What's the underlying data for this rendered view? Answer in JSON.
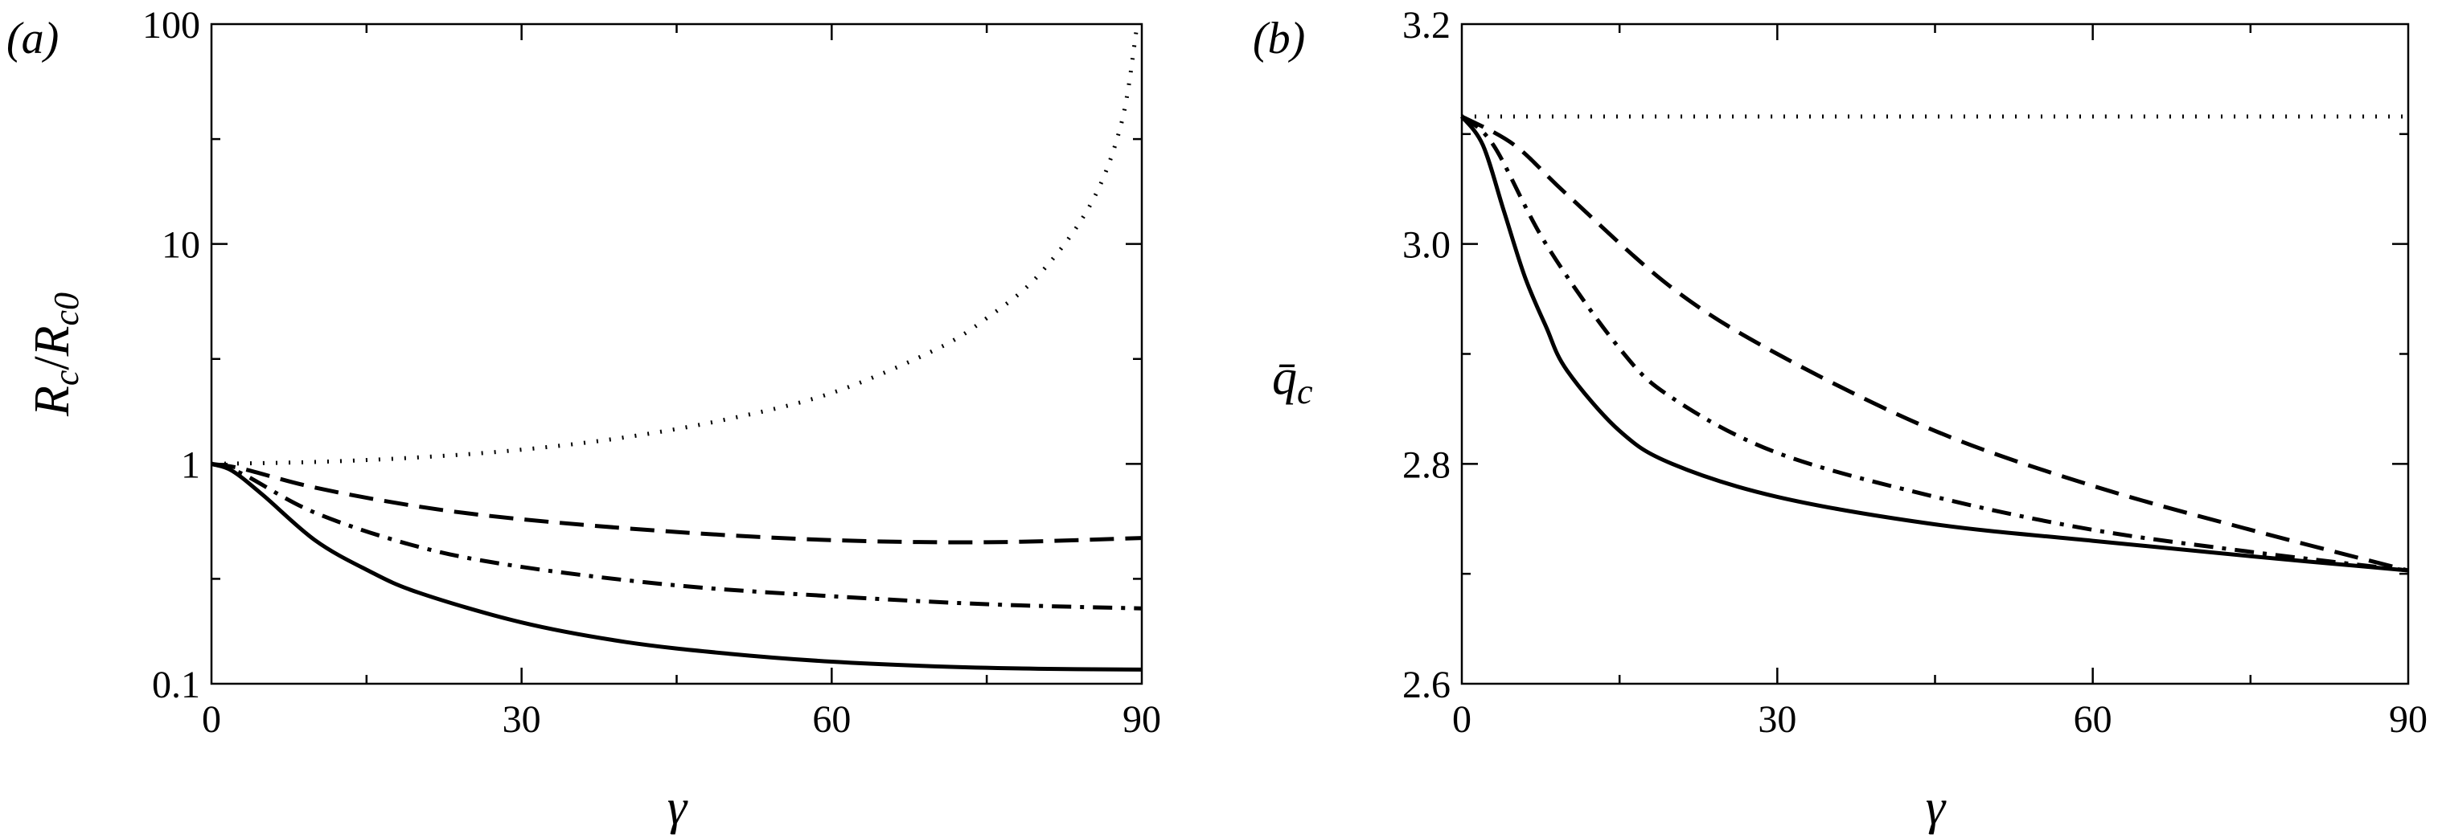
{
  "chart_data": [
    {
      "panel_label": "(a)",
      "type": "line",
      "ylabel": "R_c/R_c0",
      "ylabel_parts": {
        "main": "R",
        "sub": "c",
        "slash": "/",
        "main2": "R",
        "sub2": "c0"
      },
      "xlabel": "γ",
      "xlim": [
        0,
        90
      ],
      "ylim": [
        0.1,
        100
      ],
      "yscale": "log",
      "xticks": [
        0,
        30,
        60,
        90
      ],
      "xtick_labels": [
        "0",
        "30",
        "60",
        "90"
      ],
      "yticks": [
        0.1,
        1,
        10,
        100
      ],
      "ytick_labels": [
        "0.1",
        "1",
        "10",
        "100"
      ],
      "grid": false,
      "series": [
        {
          "line_style": "dotted",
          "x": [
            0,
            10,
            20,
            30,
            40,
            50,
            60,
            70,
            75,
            80,
            85,
            88,
            89.5
          ],
          "y": [
            1.0,
            1.02,
            1.07,
            1.16,
            1.32,
            1.6,
            2.1,
            3.3,
            4.6,
            7.2,
            15,
            35,
            95
          ]
        },
        {
          "line_style": "dashed",
          "x": [
            0,
            3,
            10,
            20,
            30,
            45,
            60,
            75,
            90
          ],
          "y": [
            1.0,
            0.95,
            0.78,
            0.64,
            0.56,
            0.49,
            0.45,
            0.44,
            0.46
          ]
        },
        {
          "line_style": "dash-dot",
          "x": [
            0,
            3,
            10,
            20,
            30,
            45,
            60,
            75,
            90
          ],
          "y": [
            1.0,
            0.9,
            0.6,
            0.42,
            0.34,
            0.28,
            0.25,
            0.23,
            0.22
          ]
        },
        {
          "line_style": "solid",
          "x": [
            0,
            2,
            5,
            10,
            15,
            20,
            30,
            40,
            50,
            60,
            70,
            80,
            90
          ],
          "y": [
            1.0,
            0.93,
            0.72,
            0.45,
            0.33,
            0.26,
            0.19,
            0.155,
            0.137,
            0.126,
            0.12,
            0.117,
            0.116
          ]
        }
      ]
    },
    {
      "panel_label": "(b)",
      "type": "line",
      "ylabel": "q̄_c",
      "ylabel_parts": {
        "main": "q̄",
        "sub": "c"
      },
      "xlabel": "γ",
      "xlim": [
        0,
        90
      ],
      "ylim": [
        2.6,
        3.2
      ],
      "yscale": "linear",
      "xticks": [
        0,
        30,
        60,
        90
      ],
      "xtick_labels": [
        "0",
        "30",
        "60",
        "90"
      ],
      "yticks": [
        2.6,
        2.8,
        3.0,
        3.2
      ],
      "ytick_labels": [
        "2.6",
        "2.8",
        "3.0",
        "3.2"
      ],
      "grid": false,
      "series": [
        {
          "line_style": "dotted",
          "x": [
            0,
            30,
            60,
            90
          ],
          "y": [
            3.116,
            3.116,
            3.116,
            3.116
          ]
        },
        {
          "line_style": "dashed",
          "x": [
            0,
            5,
            10,
            20,
            30,
            45,
            60,
            75,
            90
          ],
          "y": [
            3.116,
            3.09,
            3.045,
            2.96,
            2.9,
            2.83,
            2.78,
            2.74,
            2.703
          ]
        },
        {
          "line_style": "dash-dot",
          "x": [
            0,
            3,
            8,
            15,
            20,
            30,
            45,
            60,
            75,
            90
          ],
          "y": [
            3.116,
            3.09,
            3.0,
            2.905,
            2.86,
            2.81,
            2.77,
            2.74,
            2.72,
            2.703
          ]
        },
        {
          "line_style": "solid",
          "x": [
            0,
            2,
            4,
            6,
            8,
            10,
            15,
            20,
            30,
            45,
            60,
            75,
            90
          ],
          "y": [
            3.116,
            3.09,
            3.03,
            2.97,
            2.925,
            2.885,
            2.83,
            2.8,
            2.77,
            2.745,
            2.73,
            2.716,
            2.703
          ]
        }
      ]
    }
  ]
}
